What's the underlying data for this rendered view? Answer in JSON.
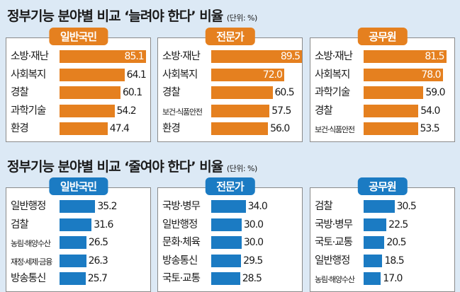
{
  "colors": {
    "increase": "#e5801f",
    "decrease": "#1b7bc3"
  },
  "chart_data": [
    {
      "type": "bar",
      "orientation": "horizontal",
      "title": "정부기능 분야별 비교 ‘늘려야 한다’ 비율",
      "unit": "(단위: %)",
      "groups": [
        {
          "name": "일반국민",
          "categories": [
            "소방·재난",
            "사회복지",
            "경찰",
            "과학기술",
            "환경"
          ],
          "values": [
            85.1,
            64.1,
            60.1,
            54.2,
            47.4
          ]
        },
        {
          "name": "전문가",
          "categories": [
            "소방·재난",
            "사회복지",
            "경찰",
            "보건·식품안전",
            "환경"
          ],
          "values": [
            89.5,
            72.0,
            60.5,
            57.5,
            56.0
          ]
        },
        {
          "name": "공무원",
          "categories": [
            "소방·재난",
            "사회복지",
            "과학기술",
            "경찰",
            "보건·식품안전"
          ],
          "values": [
            81.5,
            78.0,
            59.0,
            54.0,
            53.5
          ]
        }
      ]
    },
    {
      "type": "bar",
      "orientation": "horizontal",
      "title": "정부기능 분야별 비교 ‘줄여야 한다’ 비율",
      "unit": "(단위: %)",
      "groups": [
        {
          "name": "일반국민",
          "categories": [
            "일반행정",
            "검찰",
            "농림·해양수산",
            "재정·세제·금융",
            "방송통신"
          ],
          "values": [
            35.2,
            31.6,
            26.5,
            26.3,
            25.7
          ]
        },
        {
          "name": "전문가",
          "categories": [
            "국방·병무",
            "일반행정",
            "문화·체육",
            "방송통신",
            "국토·교통"
          ],
          "values": [
            34.0,
            30.0,
            30.0,
            29.5,
            28.5
          ]
        },
        {
          "name": "공무원",
          "categories": [
            "검찰",
            "국방·병무",
            "국토·교통",
            "일반행정",
            "농림·해양수산"
          ],
          "values": [
            30.5,
            22.5,
            20.5,
            18.5,
            17.0
          ]
        }
      ]
    }
  ]
}
